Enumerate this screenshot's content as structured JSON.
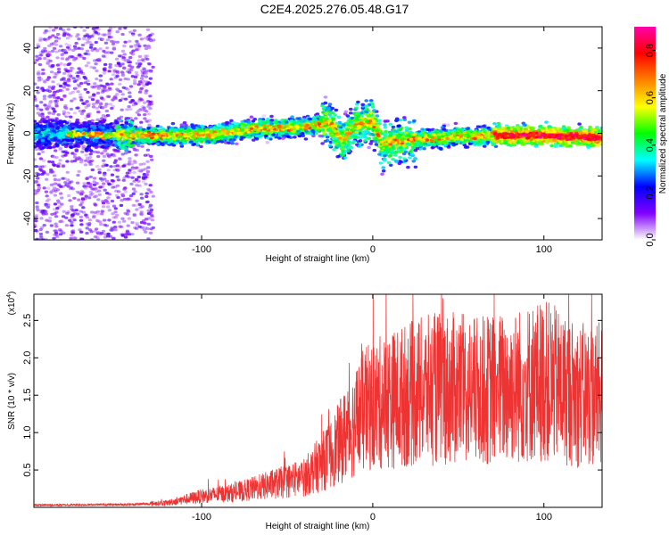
{
  "title": "C2E4.2025.276.05.48.G17",
  "chart_data": [
    {
      "type": "heatmap",
      "xlabel": "Height of straight line (km)",
      "ylabel": "Frequency (Hz)",
      "xlim": [
        -198,
        134
      ],
      "ylim": [
        -50,
        50
      ],
      "x_ticks": [
        -100,
        0,
        100
      ],
      "x_tick_labels": [
        "-100",
        "0",
        "100"
      ],
      "y_ticks": [
        -40,
        -20,
        0,
        20,
        40
      ],
      "y_tick_labels": [
        "-40",
        "-20",
        "0",
        "20",
        "40"
      ],
      "colorbar": {
        "label": "Normalized spectral amplitude",
        "range": [
          0,
          0.9
        ],
        "ticks": [
          0,
          0.2,
          0.4,
          0.6,
          0.8
        ],
        "tick_labels": [
          "0.0",
          "0.2",
          "0.4",
          "0.6",
          "0.8"
        ],
        "colormap": [
          "#ffffff",
          "#8000ff",
          "#0000ff",
          "#00ffff",
          "#00ff00",
          "#ffff00",
          "#ff8000",
          "#ff0000",
          "#ff00aa"
        ]
      },
      "ridge": [
        {
          "x": -195,
          "y": 0
        },
        {
          "x": -150,
          "y": -1
        },
        {
          "x": -100,
          "y": -1
        },
        {
          "x": -70,
          "y": 2
        },
        {
          "x": -40,
          "y": 3
        },
        {
          "x": -25,
          "y": 5
        },
        {
          "x": -18,
          "y": -4
        },
        {
          "x": -10,
          "y": 4
        },
        {
          "x": 0,
          "y": 6
        },
        {
          "x": 5,
          "y": -5
        },
        {
          "x": 20,
          "y": -3
        },
        {
          "x": 40,
          "y": -2
        },
        {
          "x": 70,
          "y": -1
        },
        {
          "x": 100,
          "y": -1
        },
        {
          "x": 133,
          "y": -2
        }
      ]
    },
    {
      "type": "line",
      "xlabel": "Height of straight line (km)",
      "ylabel": "SNR (10 * v/v)",
      "y_multiplier_label": "(x10",
      "y_multiplier_exp": "4",
      "y_multiplier_close": ")",
      "xlim": [
        -198,
        134
      ],
      "ylim": [
        0,
        2.85
      ],
      "x_ticks": [
        -100,
        0,
        100
      ],
      "x_tick_labels": [
        "-100",
        "0",
        "100"
      ],
      "y_ticks": [
        0.5,
        1.0,
        1.5,
        2.0,
        2.5
      ],
      "y_tick_labels": [
        "0.5",
        "1.0",
        "1.5",
        "2.0",
        "2.5"
      ],
      "color": "#ee3333",
      "envelope": [
        {
          "x": -198,
          "y": 0.03
        },
        {
          "x": -140,
          "y": 0.04
        },
        {
          "x": -120,
          "y": 0.06
        },
        {
          "x": -100,
          "y": 0.15
        },
        {
          "x": -80,
          "y": 0.2
        },
        {
          "x": -60,
          "y": 0.3
        },
        {
          "x": -40,
          "y": 0.4
        },
        {
          "x": -25,
          "y": 0.7
        },
        {
          "x": -15,
          "y": 1.0
        },
        {
          "x": -5,
          "y": 1.3
        },
        {
          "x": 5,
          "y": 1.4
        },
        {
          "x": 20,
          "y": 1.5
        },
        {
          "x": 40,
          "y": 1.6
        },
        {
          "x": 60,
          "y": 1.55
        },
        {
          "x": 80,
          "y": 1.6
        },
        {
          "x": 100,
          "y": 1.7
        },
        {
          "x": 120,
          "y": 1.5
        },
        {
          "x": 134,
          "y": 1.5
        }
      ]
    }
  ]
}
